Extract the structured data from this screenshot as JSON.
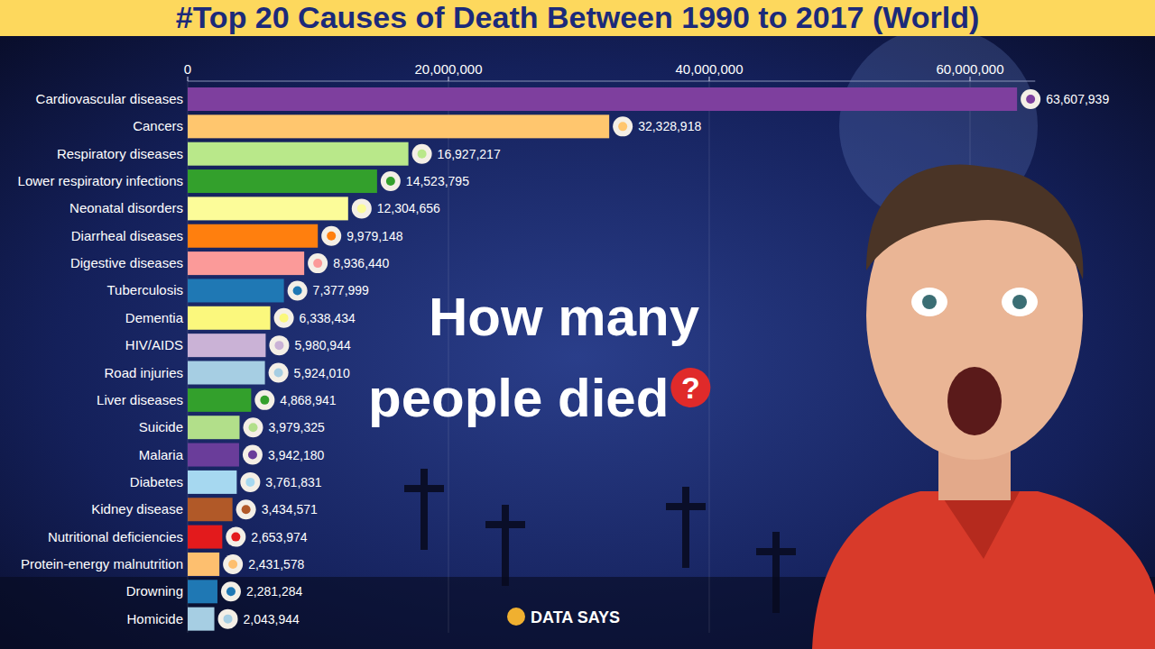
{
  "chart_data": {
    "type": "bar",
    "orientation": "horizontal",
    "title": "#Top 20 Causes of Death Between 1990 to 2017 (World)",
    "categories": [
      "Cardiovascular diseases",
      "Cancers",
      "Respiratory diseases",
      "Lower respiratory infections",
      "Neonatal disorders",
      "Diarrheal diseases",
      "Digestive diseases",
      "Tuberculosis",
      "Dementia",
      "HIV/AIDS",
      "Road injuries",
      "Liver diseases",
      "Suicide",
      "Malaria",
      "Diabetes",
      "Kidney disease",
      "Nutritional deficiencies",
      "Protein-energy malnutrition",
      "Drowning",
      "Homicide"
    ],
    "values": [
      63607939,
      32328918,
      16927217,
      14523795,
      12304656,
      9979148,
      8936440,
      7377999,
      6338434,
      5980944,
      5924010,
      4868941,
      3979325,
      3942180,
      3761831,
      3434571,
      2653974,
      2431578,
      2281284,
      2043944
    ],
    "value_labels": [
      "63,607,939",
      "32,328,918",
      "16,927,217",
      "14,523,795",
      "12,304,656",
      "9,979,148",
      "8,936,440",
      "7,377,999",
      "6,338,434",
      "5,980,944",
      "5,924,010",
      "4,868,941",
      "3,979,325",
      "3,942,180",
      "3,761,831",
      "3,434,571",
      "2,653,974",
      "2,431,578",
      "2,281,284",
      "2,043,944"
    ],
    "colors": [
      "#7e3f9e",
      "#ffc66e",
      "#b9e88a",
      "#33a02c",
      "#fcfc99",
      "#ff7f0e",
      "#fb9a99",
      "#1f78b4",
      "#fbf87d",
      "#cab2d6",
      "#a6cee3",
      "#33a02c",
      "#b2df8a",
      "#6a3d9a",
      "#a6d8f0",
      "#b15928",
      "#e31a1c",
      "#fdbf6f",
      "#1f78b4",
      "#a6cee3"
    ],
    "xlim": [
      0,
      65000000
    ],
    "xticks": [
      0,
      {
        "value": 20000000,
        "label": "20,000,000"
      },
      {
        "value": 40000000,
        "label": "40,000,000"
      },
      {
        "value": 60000000,
        "label": "60,000,000"
      }
    ],
    "grid": true,
    "data_labels": true,
    "annotations": [
      "How many",
      "people died",
      "?",
      "DATA SAYS"
    ]
  }
}
